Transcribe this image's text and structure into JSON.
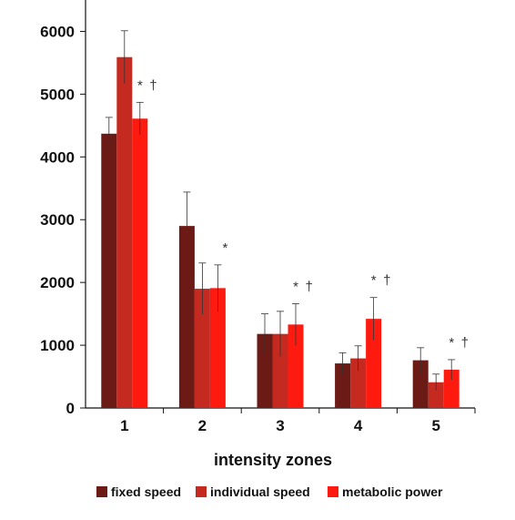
{
  "chart_data": {
    "type": "bar",
    "xlabel": "intensity zones",
    "ylabel": "",
    "categories": [
      "1",
      "2",
      "3",
      "4",
      "5"
    ],
    "ylim": [
      0,
      6500
    ],
    "yticks": [
      "0",
      "1000",
      "2000",
      "3000",
      "4000",
      "5000",
      "6000"
    ],
    "grid": false,
    "legend_position": "bottom",
    "series": [
      {
        "name": "fixed speed",
        "color": "#6b1a16",
        "values": [
          4370,
          2900,
          1180,
          710,
          760
        ],
        "errors": [
          260,
          540,
          320,
          170,
          200
        ]
      },
      {
        "name": "individual speed",
        "color": "#c42a20",
        "values": [
          5590,
          1900,
          1180,
          790,
          410
        ],
        "errors": [
          420,
          410,
          360,
          200,
          130
        ]
      },
      {
        "name": "metabolic power",
        "color": "#ff1a10",
        "values": [
          4610,
          1910,
          1330,
          1420,
          610
        ],
        "errors": [
          260,
          370,
          330,
          340,
          160
        ]
      }
    ],
    "annotations": [
      {
        "category": "1",
        "text": "* †"
      },
      {
        "category": "2",
        "text": "*"
      },
      {
        "category": "3",
        "text": "* †"
      },
      {
        "category": "4",
        "text": "* †"
      },
      {
        "category": "5",
        "text": "* †"
      }
    ]
  }
}
